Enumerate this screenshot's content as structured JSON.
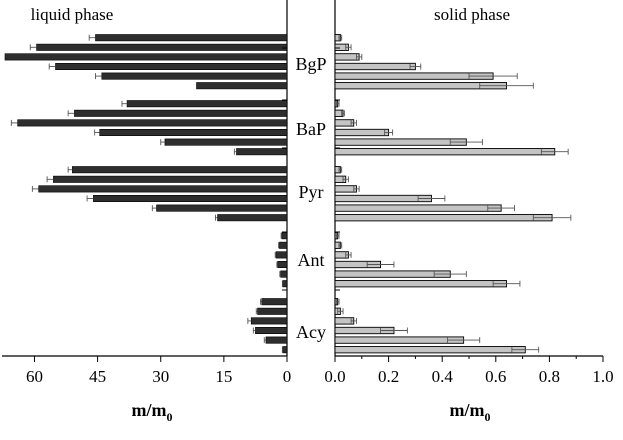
{
  "chart_data": [
    {
      "type": "bar",
      "orientation": "horizontal",
      "direction": "right-to-left",
      "title": "liquid phase",
      "xlabel": "m/m",
      "xlabel_sub": "0",
      "xlim": [
        0,
        67
      ],
      "xticks": [
        60,
        45,
        30,
        15,
        0
      ],
      "xtick_labels": [
        "60",
        "45",
        "30",
        "15",
        "0"
      ],
      "categories": [
        "BgP",
        "BaP",
        "Pyr",
        "Ant",
        "Acy"
      ],
      "bar_color": "#2e2e2e",
      "values": [
        [
          45.5,
          59.5,
          67,
          55,
          44,
          21.5
        ],
        [
          38,
          50.5,
          64,
          44.5,
          29,
          12
        ],
        [
          51,
          55.5,
          59,
          46,
          31,
          16.5
        ],
        [
          1.2,
          1.8,
          2.6,
          2.2,
          1.5,
          1.0
        ],
        [
          6,
          7,
          8.5,
          7.5,
          5,
          1.0
        ]
      ],
      "errors": [
        [
          1.5,
          1.5,
          0,
          1.5,
          1.5,
          0
        ],
        [
          1.2,
          1.5,
          1.5,
          1.2,
          1.0,
          0.5
        ],
        [
          1.0,
          1.5,
          1.5,
          1.5,
          1.0,
          0.5
        ],
        [
          0.2,
          0.2,
          0.2,
          0.2,
          0.2,
          0.1
        ],
        [
          0.3,
          0.3,
          0.8,
          0.5,
          0.4,
          0.1
        ]
      ]
    },
    {
      "type": "bar",
      "orientation": "horizontal",
      "title": "solid phase",
      "xlabel": "m/m",
      "xlabel_sub": "0",
      "xlim": [
        0,
        1.0
      ],
      "xticks": [
        0,
        0.2,
        0.4,
        0.6,
        0.8,
        1.0
      ],
      "xtick_labels": [
        "0.0",
        "0.2",
        "0.4",
        "0.6",
        "0.8",
        "1.0"
      ],
      "categories": [
        "BgP",
        "BaP",
        "Pyr",
        "Ant",
        "Acy"
      ],
      "bar_color": "#c4c4c4",
      "values": [
        [
          0.02,
          0.05,
          0.09,
          0.3,
          0.59,
          0.64
        ],
        [
          0.01,
          0.03,
          0.07,
          0.2,
          0.49,
          0.82
        ],
        [
          0.02,
          0.04,
          0.08,
          0.36,
          0.62,
          0.81
        ],
        [
          0.01,
          0.02,
          0.05,
          0.17,
          0.43,
          0.64
        ],
        [
          0.01,
          0.02,
          0.07,
          0.22,
          0.48,
          0.71
        ]
      ],
      "errors": [
        [
          0.005,
          0.01,
          0.01,
          0.02,
          0.09,
          0.1
        ],
        [
          0.005,
          0.005,
          0.01,
          0.015,
          0.06,
          0.05
        ],
        [
          0.005,
          0.01,
          0.01,
          0.05,
          0.05,
          0.07
        ],
        [
          0.005,
          0.005,
          0.01,
          0.05,
          0.06,
          0.05
        ],
        [
          0.005,
          0.01,
          0.01,
          0.05,
          0.06,
          0.05
        ]
      ]
    }
  ]
}
